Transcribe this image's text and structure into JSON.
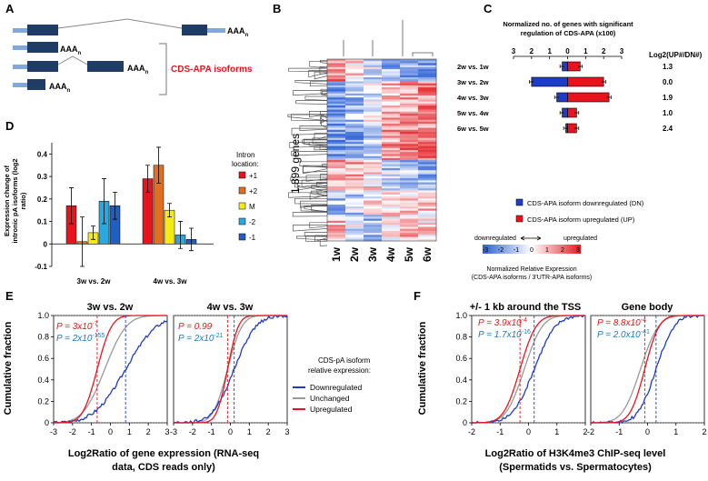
{
  "panels": {
    "A": "A",
    "B": "B",
    "C": "C",
    "D": "D",
    "E": "E",
    "F": "F"
  },
  "panel_a": {
    "polyA": "AAA",
    "polyA_sub": "n",
    "isoform_label": "CDS-APA isoforms",
    "colors": {
      "utr": "#7fa9d9",
      "cds": "#1f3c66",
      "label": "#e8141d"
    }
  },
  "panel_b": {
    "genes_label": "1,899 genes",
    "columns": [
      "1w",
      "2w",
      "3w",
      "4w",
      "5w",
      "6w"
    ]
  },
  "panel_c": {
    "header_line1": "Normalized no. of genes with significant",
    "header_line2": "regulation of CDS-APA (x100)",
    "axis_ticks": [
      "3",
      "2",
      "1",
      "0",
      "1",
      "2",
      "3"
    ],
    "log2_header": "Log2(UP#/DN#)",
    "legend_dn": "CDS-APA isoform downregulated (DN)",
    "legend_up": "CDS-APA isoform upregulated (UP)",
    "scale_down": "downregulated",
    "scale_up": "upregulated",
    "scale_ticks": [
      "-3",
      "-2",
      "-1",
      "0",
      "1",
      "2",
      "3"
    ],
    "scale_title": "Normalized Relative Expression",
    "scale_subtitle": "(CDS-APA isoforms / 3'UTR-APA isoforms)",
    "colors": {
      "dn": "#1f3cc8",
      "up": "#e8141d"
    }
  },
  "panel_d": {
    "ylabel_line1": "Expression change of",
    "ylabel_line2": "intronic pA isoforms (log2",
    "ylabel_line3": "ratio)",
    "yticks": [
      "0.4",
      "0.3",
      "0.2",
      "0.1",
      "0",
      "-0.1"
    ],
    "groups": [
      "3w vs. 2w",
      "4w vs. 3w"
    ],
    "legend_title_line1": "Intron",
    "legend_title_line2": "location:",
    "legend": [
      {
        "label": "+1",
        "color": "#e8141d"
      },
      {
        "label": "+2",
        "color": "#e07020"
      },
      {
        "label": "M",
        "color": "#f5ea14"
      },
      {
        "label": "-2",
        "color": "#2aa9e0"
      },
      {
        "label": "-1",
        "color": "#1f5fbf"
      }
    ]
  },
  "panel_e": {
    "ylabel": "Cumulative fraction",
    "yticks": [
      "1.0",
      "0.8",
      "0.6",
      "0.4",
      "0.2",
      "0"
    ],
    "xticks": [
      "-3",
      "-2",
      "-1",
      "0",
      "1",
      "2",
      "3"
    ],
    "titles": [
      "3w vs. 2w",
      "4w vs. 3w"
    ],
    "p_up": [
      "P = 3x10",
      "P = 0.99"
    ],
    "p_up_exp": [
      "-7",
      ""
    ],
    "p_dn": [
      "P = 2x10",
      "P = 2x10"
    ],
    "p_dn_exp": [
      "-155",
      "-21"
    ],
    "xlabel_line1": "Log2Ratio of gene expression (RNA-seq",
    "xlabel_line2": "data, CDS reads only)",
    "legend_title_line1": "CDS-pA isoform",
    "legend_title_line2": "relative expression:",
    "legend": [
      {
        "label": "Downregulated",
        "color": "#1f3cc8"
      },
      {
        "label": "Unchanged",
        "color": "#9a9a9a"
      },
      {
        "label": "Upregulated",
        "color": "#e8141d"
      }
    ]
  },
  "panel_f": {
    "ylabel": "Cumulative fraction",
    "yticks": [
      "1.0",
      "0.8",
      "0.6",
      "0.4",
      "0.2",
      "0"
    ],
    "xticks": [
      "-2",
      "-1",
      "0",
      "1",
      "2"
    ],
    "titles": [
      "+/- 1 kb around the TSS",
      "Gene body"
    ],
    "p_up": [
      "P = 3.9x10",
      "P = 8.8x10"
    ],
    "p_up_exp": [
      "-4",
      "-4"
    ],
    "p_dn": [
      "P = 1.7x10",
      "P = 2.0x10"
    ],
    "p_dn_exp": [
      "-16",
      "-41"
    ],
    "xlabel_line1": "Log2Ratio of H3K4me3 ChIP-seq level",
    "xlabel_line2": "(Spermatids vs. Spermatocytes)"
  },
  "chart_data": [
    {
      "type": "bar",
      "title": "Normalized no. of genes with significant regulation of CDS-APA (x100)",
      "categories": [
        "2w vs. 1w",
        "3w vs. 2w",
        "4w vs. 3w",
        "5w vs. 4w",
        "6w vs. 5w"
      ],
      "series": [
        {
          "name": "CDS-APA isoform downregulated (DN)",
          "values": [
            0.3,
            2.0,
            0.6,
            0.3,
            0.1
          ]
        },
        {
          "name": "CDS-APA isoform upregulated (UP)",
          "values": [
            0.7,
            2.0,
            2.3,
            0.5,
            0.5
          ]
        }
      ],
      "log2_values": [
        "1.3",
        "0.0",
        "1.9",
        "1.0",
        "2.4"
      ],
      "xlim": [
        -3,
        3
      ]
    },
    {
      "type": "bar",
      "ylabel": "Expression change of intronic pA isoforms (log2 ratio)",
      "categories": [
        "3w vs. 2w",
        "4w vs. 3w"
      ],
      "series": [
        {
          "name": "+1",
          "values": [
            0.17,
            0.29
          ],
          "err": [
            0.08,
            0.06
          ]
        },
        {
          "name": "+2",
          "values": [
            0.01,
            0.35
          ],
          "err": [
            0.11,
            0.08
          ]
        },
        {
          "name": "M",
          "values": [
            0.05,
            0.15
          ],
          "err": [
            0.03,
            0.03
          ]
        },
        {
          "name": "-2",
          "values": [
            0.19,
            0.04
          ],
          "err": [
            0.1,
            0.06
          ]
        },
        {
          "name": "-1",
          "values": [
            0.17,
            0.02
          ],
          "err": [
            0.06,
            0.05
          ]
        }
      ],
      "ylim": [
        -0.1,
        0.45
      ]
    },
    {
      "type": "line",
      "title": "3w vs. 2w",
      "xlabel": "Log2Ratio of gene expression (RNA-seq data, CDS reads only)",
      "ylabel": "Cumulative fraction",
      "xlim": [
        -3,
        3
      ],
      "ylim": [
        0,
        1
      ],
      "series": [
        {
          "name": "Downregulated",
          "mean": 0.8,
          "sd": 1.3
        },
        {
          "name": "Unchanged",
          "mean": -0.3,
          "sd": 0.9
        },
        {
          "name": "Upregulated",
          "mean": -0.7,
          "sd": 0.6
        }
      ]
    },
    {
      "type": "line",
      "title": "4w vs. 3w",
      "xlim": [
        -3,
        3
      ],
      "ylim": [
        0,
        1
      ],
      "series": [
        {
          "name": "Downregulated",
          "mean": 0.2,
          "sd": 0.9
        },
        {
          "name": "Unchanged",
          "mean": -0.15,
          "sd": 0.6
        },
        {
          "name": "Upregulated",
          "mean": -0.15,
          "sd": 0.45
        }
      ]
    },
    {
      "type": "line",
      "title": "+/- 1 kb around the TSS",
      "xlabel": "Log2Ratio of H3K4me3 ChIP-seq level (Spermatids vs. Spermatocytes)",
      "ylabel": "Cumulative fraction",
      "xlim": [
        -2,
        2
      ],
      "ylim": [
        0,
        1
      ],
      "series": [
        {
          "name": "Downregulated",
          "mean": 0.2,
          "sd": 0.6
        },
        {
          "name": "Unchanged",
          "mean": -0.15,
          "sd": 0.5
        },
        {
          "name": "Upregulated",
          "mean": -0.3,
          "sd": 0.45
        }
      ]
    },
    {
      "type": "line",
      "title": "Gene body",
      "xlim": [
        -2,
        2
      ],
      "ylim": [
        0,
        1
      ],
      "series": [
        {
          "name": "Downregulated",
          "mean": 0.3,
          "sd": 0.5
        },
        {
          "name": "Unchanged",
          "mean": -0.25,
          "sd": 0.5
        },
        {
          "name": "Upregulated",
          "mean": -0.1,
          "sd": 0.4
        }
      ]
    }
  ]
}
